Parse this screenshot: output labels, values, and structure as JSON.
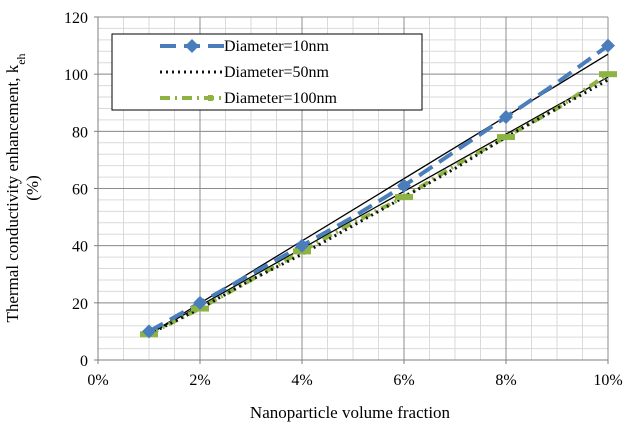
{
  "chart_data": {
    "type": "line",
    "title": "",
    "xlabel": "Nanoparticle volume fraction",
    "ylabel": {
      "main": "Thermal conductivity enhancement, k",
      "subscript": "eh",
      "unit": "(%)"
    },
    "xlim": [
      0,
      10
    ],
    "ylim": [
      0,
      120
    ],
    "x_tick_labels": [
      "0%",
      "2%",
      "4%",
      "6%",
      "8%",
      "10%"
    ],
    "y_tick_labels": [
      "0",
      "20",
      "40",
      "60",
      "80",
      "100",
      "120"
    ],
    "grid": true,
    "legend_position": "top-left",
    "x": [
      1,
      2,
      3,
      4,
      5,
      6,
      7,
      8,
      9,
      10
    ],
    "series": [
      {
        "name": "Diameter=10nm",
        "color": "#4a7ebb",
        "style": "long-dash with diamond markers",
        "values": [
          10,
          20,
          30,
          40,
          50,
          61,
          73,
          85,
          97,
          110
        ],
        "marker_x": [
          1,
          2,
          4,
          6,
          8,
          10
        ],
        "marker_values": [
          10,
          20,
          40,
          61,
          85,
          110
        ]
      },
      {
        "name": "Diameter=50nm",
        "color": "#111111",
        "style": "dotted",
        "values": [
          9,
          18,
          28,
          37,
          47,
          57,
          67,
          78,
          88,
          98
        ]
      },
      {
        "name": "Diameter=100nm",
        "color": "#8db443",
        "style": "dash-dot with square markers",
        "values": [
          9,
          18,
          28,
          38,
          48,
          57,
          68,
          78,
          88,
          100
        ],
        "marker_x": [
          1,
          2,
          4,
          6,
          8,
          10
        ],
        "marker_values": [
          9,
          18,
          38,
          57,
          78,
          100
        ]
      }
    ],
    "trendlines": [
      {
        "color": "#000000",
        "x": [
          1,
          10
        ],
        "values": [
          9,
          107
        ]
      },
      {
        "color": "#000000",
        "x": [
          1,
          10
        ],
        "values": [
          9,
          99
        ]
      }
    ]
  }
}
